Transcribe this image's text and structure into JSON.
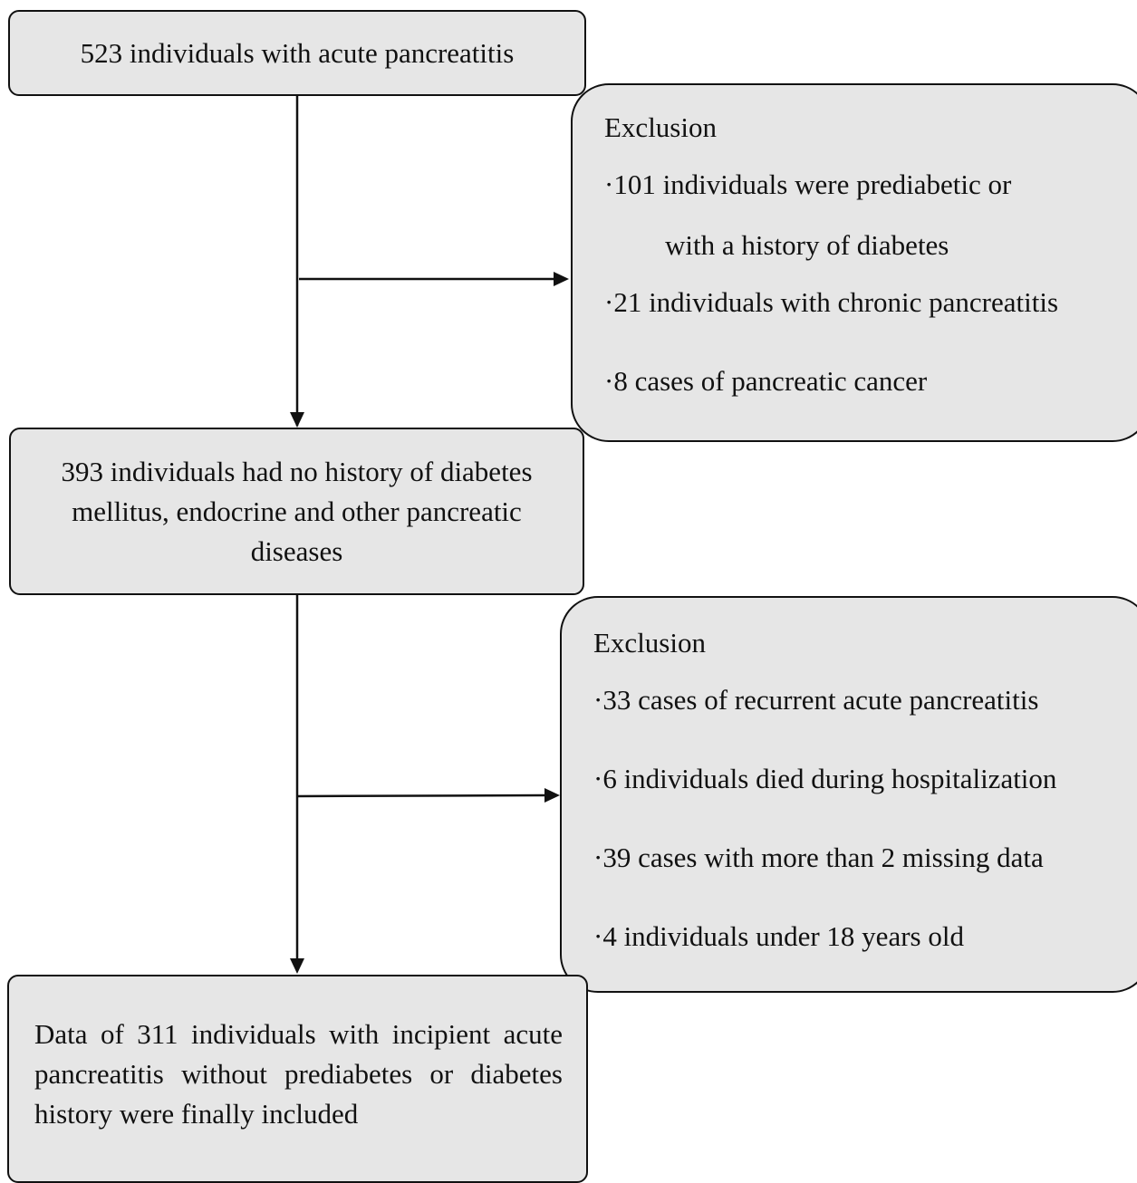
{
  "boxes": {
    "start": "523 individuals with acute pancreatitis",
    "middle_lines": [
      "393 individuals had no history of diabetes",
      "mellitus, endocrine and other pancreatic",
      "diseases"
    ],
    "final": "Data of 311 individuals with incipient acute pancreatitis without prediabetes or diabetes history were finally included"
  },
  "exclusion1": {
    "title": "Exclusion",
    "items": [
      "·101 individuals were prediabetic or",
      "with a history of diabetes",
      "·21 individuals with chronic pancreatitis",
      "·8 cases of pancreatic cancer"
    ]
  },
  "exclusion2": {
    "title": "Exclusion",
    "items": [
      "·33 cases of recurrent acute pancreatitis",
      "·6 individuals died during hospitalization",
      "·39 cases with more than 2 missing data",
      "·4 individuals under 18 years old"
    ]
  }
}
